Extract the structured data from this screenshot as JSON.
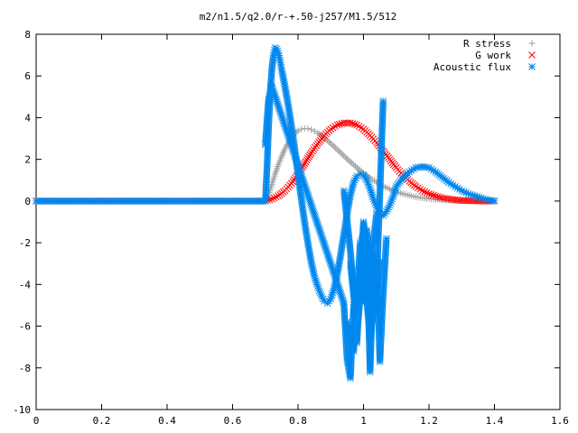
{
  "chart_data": {
    "type": "scatter",
    "title": "m2/n1.5/q2.0/r-+.50-j257/M1.5/512",
    "xlabel": "",
    "ylabel": "",
    "xlim": [
      0,
      1.6
    ],
    "ylim": [
      -10,
      8
    ],
    "xticks": [
      0,
      0.2,
      0.4,
      0.6,
      0.8,
      1,
      1.2,
      1.4,
      1.6
    ],
    "xtick_labels": [
      "0",
      "0.2",
      "0.4",
      "0.6",
      "0.8",
      "1",
      "1.2",
      "1.4",
      "1.6"
    ],
    "yticks": [
      -10,
      -8,
      -6,
      -4,
      -2,
      0,
      2,
      4,
      6,
      8
    ],
    "ytick_labels": [
      "-10",
      "-8",
      "-6",
      "-4",
      "-2",
      "0",
      "2",
      "4",
      "6",
      "8"
    ],
    "grid": false,
    "legend_position": "top-right",
    "series": [
      {
        "name": "R stress",
        "marker": "plus",
        "color": "#a0a0a0",
        "x": [
          0.0,
          0.1,
          0.2,
          0.3,
          0.4,
          0.5,
          0.6,
          0.7,
          0.71,
          0.72,
          0.73,
          0.74,
          0.75,
          0.76,
          0.77,
          0.78,
          0.79,
          0.8,
          0.81,
          0.82,
          0.83,
          0.84,
          0.85,
          0.86,
          0.87,
          0.88,
          0.89,
          0.9,
          0.92,
          0.94,
          0.96,
          0.98,
          1.0,
          1.02,
          1.04,
          1.06,
          1.08,
          1.1,
          1.12,
          1.14,
          1.16,
          1.18,
          1.2,
          1.22,
          1.24,
          1.26,
          1.28,
          1.3,
          1.32,
          1.34,
          1.36,
          1.38,
          1.4
        ],
        "y": [
          0,
          0,
          0,
          0,
          0,
          0,
          0,
          0,
          0.3,
          0.8,
          1.3,
          1.75,
          2.15,
          2.5,
          2.8,
          3.05,
          3.25,
          3.38,
          3.45,
          3.48,
          3.47,
          3.43,
          3.36,
          3.27,
          3.16,
          3.04,
          2.9,
          2.76,
          2.47,
          2.17,
          1.88,
          1.6,
          1.34,
          1.11,
          0.9,
          0.72,
          0.57,
          0.45,
          0.35,
          0.27,
          0.2,
          0.15,
          0.11,
          0.08,
          0.06,
          0.04,
          0.03,
          0.02,
          0.01,
          0.01,
          0.0,
          0.0,
          0.0
        ]
      },
      {
        "name": "G work",
        "marker": "cross",
        "color": "#ff0000",
        "x": [
          0.0,
          0.1,
          0.2,
          0.3,
          0.4,
          0.5,
          0.6,
          0.7,
          0.72,
          0.74,
          0.76,
          0.78,
          0.8,
          0.82,
          0.84,
          0.86,
          0.88,
          0.9,
          0.92,
          0.94,
          0.96,
          0.98,
          1.0,
          1.02,
          1.04,
          1.06,
          1.08,
          1.1,
          1.12,
          1.14,
          1.16,
          1.18,
          1.2,
          1.22,
          1.24,
          1.26,
          1.28,
          1.3,
          1.32,
          1.34,
          1.36,
          1.38,
          1.4
        ],
        "y": [
          0,
          0,
          0,
          0,
          0,
          0,
          0,
          0,
          0.1,
          0.25,
          0.5,
          0.85,
          1.3,
          1.8,
          2.3,
          2.75,
          3.15,
          3.45,
          3.65,
          3.75,
          3.75,
          3.65,
          3.45,
          3.15,
          2.8,
          2.4,
          2.0,
          1.6,
          1.25,
          0.95,
          0.7,
          0.5,
          0.35,
          0.24,
          0.15,
          0.1,
          0.06,
          0.03,
          0.02,
          0.01,
          0.0,
          0.0,
          0.0
        ]
      },
      {
        "name": "Acoustic flux",
        "marker": "star",
        "color": "#0088ee",
        "x": [
          0.0,
          0.1,
          0.2,
          0.3,
          0.4,
          0.5,
          0.6,
          0.7,
          0.705,
          0.71,
          0.715,
          0.72,
          0.725,
          0.73,
          0.735,
          0.74,
          0.745,
          0.75,
          0.76,
          0.77,
          0.78,
          0.79,
          0.8,
          0.81,
          0.82,
          0.83,
          0.84,
          0.85,
          0.86,
          0.87,
          0.88,
          0.89,
          0.9,
          0.91,
          0.92,
          0.93,
          0.94,
          0.95,
          0.96,
          0.97,
          0.98,
          0.99,
          1.0,
          1.01,
          1.02,
          1.03,
          1.04,
          1.05,
          1.06,
          1.07,
          1.08,
          1.09,
          1.1,
          1.12,
          1.14,
          1.16,
          1.18,
          1.2,
          1.22,
          1.24,
          1.26,
          1.28,
          1.3,
          1.32,
          1.34,
          1.36,
          1.38,
          1.4,
          0.7,
          0.71,
          0.72,
          0.94,
          0.95,
          0.96,
          0.97,
          0.98,
          0.99,
          1.0,
          1.01,
          1.02,
          1.03,
          1.04,
          1.05,
          1.06,
          1.07,
          0.94,
          0.96,
          0.98,
          1.0,
          1.02,
          1.04,
          1.06,
          0.95,
          0.97,
          0.99,
          1.01,
          1.03,
          1.05,
          0.96,
          0.98,
          1.0,
          1.02,
          1.04
        ],
        "y": [
          0,
          0,
          0,
          0,
          0,
          0,
          0,
          0,
          1.5,
          3.5,
          5.2,
          6.3,
          7.0,
          7.35,
          7.3,
          7.1,
          6.75,
          6.3,
          5.5,
          4.6,
          3.6,
          2.5,
          1.3,
          0.1,
          -1.0,
          -2.0,
          -2.9,
          -3.6,
          -4.1,
          -4.5,
          -4.8,
          -4.9,
          -4.7,
          -4.2,
          -3.5,
          -2.6,
          -1.6,
          -0.6,
          0.3,
          0.9,
          1.2,
          1.3,
          1.25,
          1.0,
          0.6,
          0.1,
          -0.3,
          -0.6,
          -0.7,
          -0.5,
          -0.2,
          0.2,
          0.7,
          1.1,
          1.4,
          1.6,
          1.65,
          1.6,
          1.4,
          1.15,
          0.9,
          0.7,
          0.5,
          0.35,
          0.25,
          0.15,
          0.05,
          0.0,
          2.7,
          4.9,
          5.5,
          -4.9,
          -7.6,
          -8.5,
          -5.0,
          -6.8,
          -3.8,
          -4.8,
          -2.3,
          -8.2,
          -3.5,
          -2.6,
          -7.7,
          -4.5,
          -1.8,
          0.5,
          -2.4,
          -6.2,
          -3.1,
          -6.5,
          -4.1,
          4.8,
          -5.8,
          -7.2,
          -2.0,
          -1.4,
          -5.3,
          -2.9,
          -3.0,
          -6.0,
          -1.0,
          -3.3,
          -0.6
        ]
      }
    ]
  }
}
